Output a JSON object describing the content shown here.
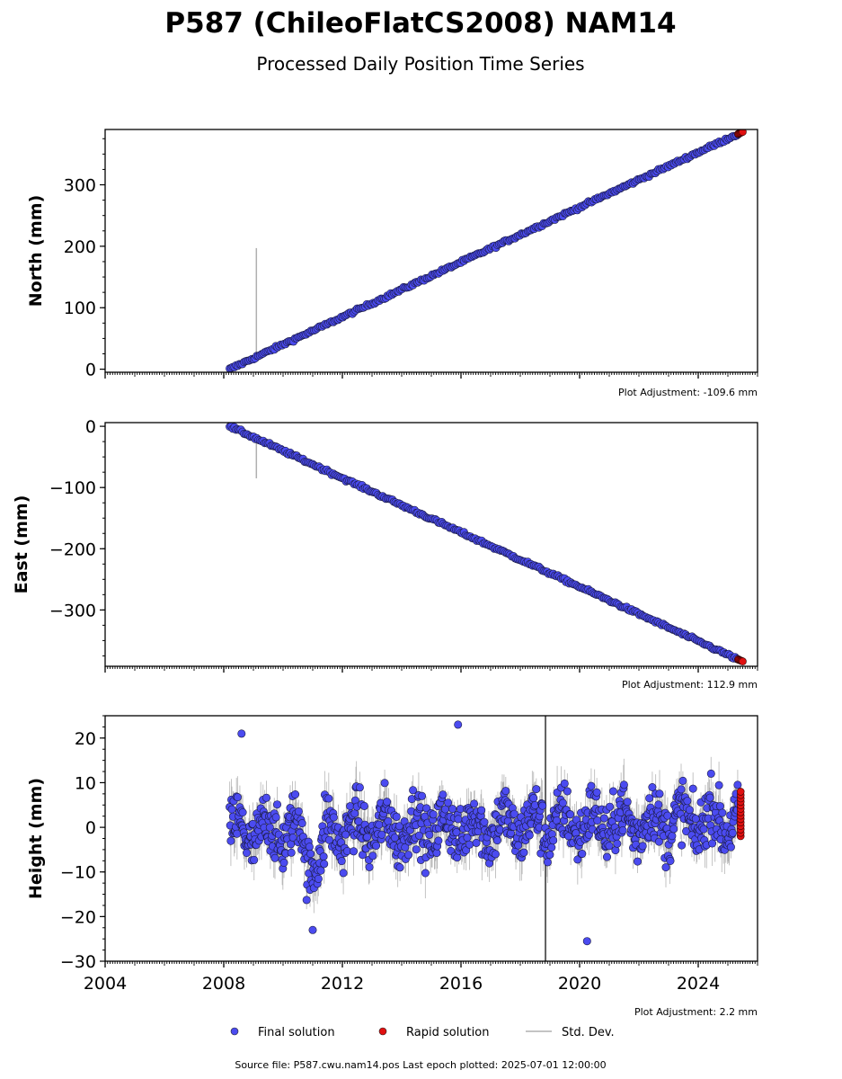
{
  "header": {
    "title": "P587 (ChileoFlatCS2008) NAM14",
    "subtitle": "Processed Daily Position Time Series"
  },
  "legend": {
    "final_label": "Final solution",
    "rapid_label": "Rapid solution",
    "std_label": "Std. Dev."
  },
  "footer": {
    "source_text": "Source file: P587.cwu.nam14.pos  Last epoch plotted: 2025-07-01 12:00:00"
  },
  "colors": {
    "final": "#4b4bf0",
    "rapid": "#e01010",
    "std": "#b0b0b0"
  },
  "chart_data": [
    {
      "type": "scatter",
      "ylabel": "North (mm)",
      "xlim": [
        2004.0,
        2026.0
      ],
      "ylim": [
        -5,
        390
      ],
      "yticks": [
        0,
        100,
        200,
        300
      ],
      "ytick_labels": [
        "0",
        "100",
        "200",
        "300"
      ],
      "adjustment": "Plot Adjustment: -109.6 mm",
      "series": [
        {
          "name": "Final solution",
          "x_start": 2008.2,
          "x_end": 2025.35,
          "y_start": 0,
          "y_end": 383
        },
        {
          "name": "Rapid solution",
          "x_start": 2025.35,
          "x_end": 2025.5,
          "y_start": 383,
          "y_end": 386
        }
      ],
      "outliers": [
        {
          "x": 2009.1,
          "y_low": 18,
          "y_high": 197
        }
      ]
    },
    {
      "type": "scatter",
      "ylabel": "East (mm)",
      "xlim": [
        2004.0,
        2026.0
      ],
      "ylim": [
        -392,
        6
      ],
      "yticks": [
        0,
        -100,
        -200,
        -300
      ],
      "ytick_labels": [
        "0",
        "−100",
        "−200",
        "−300"
      ],
      "adjustment": "Plot Adjustment: 112.9 mm",
      "series": [
        {
          "name": "Final solution",
          "x_start": 2008.2,
          "x_end": 2025.35,
          "y_start": 0,
          "y_end": -381
        },
        {
          "name": "Rapid solution",
          "x_start": 2025.35,
          "x_end": 2025.5,
          "y_start": -381,
          "y_end": -384
        }
      ],
      "outliers": [
        {
          "x": 2009.1,
          "y_low": -85,
          "y_high": -18
        }
      ]
    },
    {
      "type": "scatter",
      "ylabel": "Height (mm)",
      "xlim": [
        2004.0,
        2026.0
      ],
      "ylim": [
        -30,
        25
      ],
      "yticks": [
        20,
        10,
        0,
        -10,
        -20,
        -30
      ],
      "ytick_labels": [
        "20",
        "10",
        "0",
        "−10",
        "−20",
        "−30"
      ],
      "xticks": [
        2004,
        2008,
        2012,
        2016,
        2020,
        2024
      ],
      "xtick_labels": [
        "2004",
        "2008",
        "2012",
        "2016",
        "2020",
        "2024"
      ],
      "adjustment": "Plot Adjustment: 2.2 mm",
      "series": [
        {
          "name": "Final solution",
          "x_start": 2008.2,
          "x_end": 2025.35,
          "y_mean": 0,
          "y_spread": 7
        },
        {
          "name": "Rapid solution",
          "x_start": 2025.35,
          "x_end": 2025.5,
          "y_min": -2,
          "y_max": 8
        }
      ],
      "notable_points": [
        {
          "x": 2008.6,
          "y": 21
        },
        {
          "x": 2020.25,
          "y": -25.5
        },
        {
          "x": 2015.9,
          "y": 23
        },
        {
          "x": 2011.0,
          "y": -23
        }
      ],
      "vertical_line": {
        "x": 2018.85
      }
    }
  ]
}
